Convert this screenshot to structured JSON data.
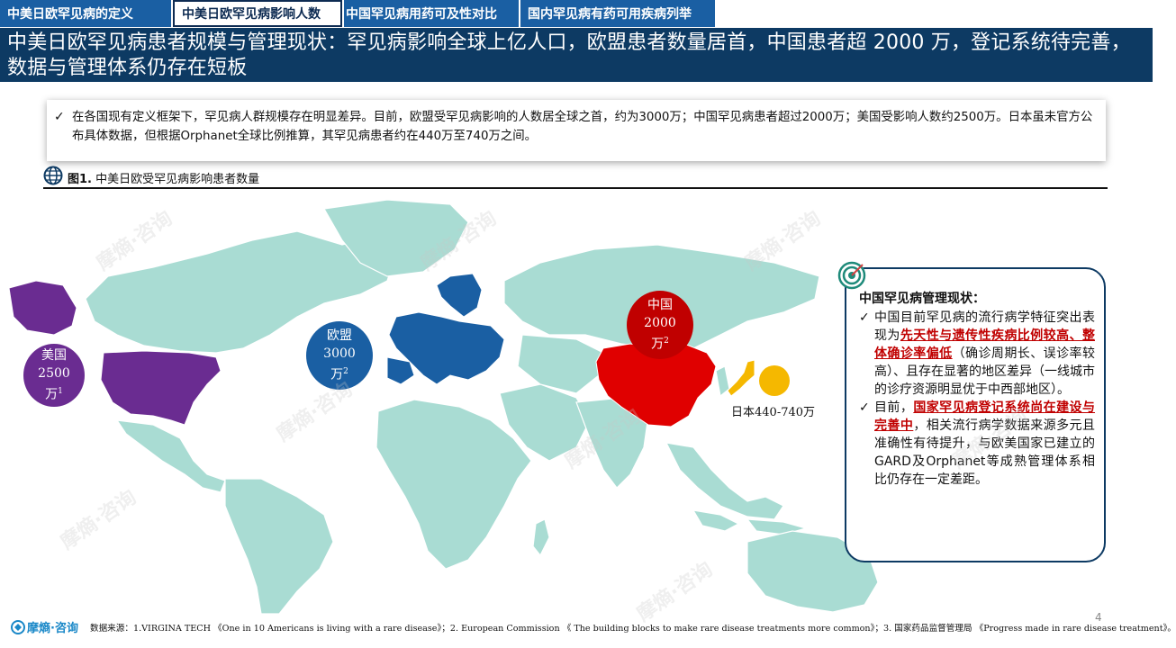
{
  "tabs": [
    {
      "label": "中美日欧罕见病的定义"
    },
    {
      "label": "中美日欧罕见病影响人数"
    },
    {
      "label": "中国罕见病用药可及性对比"
    },
    {
      "label": "国内罕见病有药可用疾病列举"
    }
  ],
  "header": {
    "title": "中美日欧罕见病患者规模与管理现状：罕见病影响全球上亿人口，欧盟患者数量居首，中国患者超 2000 万，登记系统待完善，数据与管理体系仍存在短板"
  },
  "summary": {
    "check": "✓",
    "text": "在各国现有定义框架下，罕见病人群规模存在明显差异。目前，欧盟受罕见病影响的人数居全球之首，约为3000万；中国罕见病患者超过2000万；美国受影响人数约2500万。日本虽未官方公布具体数据，但根据Orphanet全球比例推算，其罕见病患者约在440万至740万之间。"
  },
  "figure": {
    "prefix": "图1.",
    "caption": "中美日欧受罕见病影响患者数量"
  },
  "bubbles": {
    "us": {
      "name": "美国",
      "value": "2500",
      "unit": "万",
      "ref": "1"
    },
    "eu": {
      "name": "欧盟",
      "value": "3000",
      "unit": "万",
      "ref": "2"
    },
    "cn": {
      "name": "中国",
      "value": "2000",
      "unit": "万",
      "ref": "2"
    },
    "jp": {
      "label": "日本440-740万"
    }
  },
  "colors": {
    "us": "#6a2c91",
    "eu": "#1a5fa3",
    "cn": "#c00000",
    "jp": "#f5b800",
    "land": "#a9dcd3",
    "header": "#0d3a63"
  },
  "panel": {
    "title": "中国罕见病管理现状：",
    "item1": {
      "pre": "中国目前罕见病的流行病学特征突出表现为",
      "highlight": "先天性与遗传性疾病比例较高、整体确诊率偏低",
      "post": "（确诊周期长、误诊率较高）、且存在显著的地区差异（一线城市的诊疗资源明显优于中西部地区）。"
    },
    "item2": {
      "pre": "目前，",
      "highlight": "国家罕见病登记系统尚在建设与完善中",
      "post": "，相关流行病学数据来源多元且准确性有待提升，与欧美国家已建立的GARD及Orphanet等成熟管理体系相比仍存在一定差距。"
    }
  },
  "footer": {
    "logo": "摩熵·咨询",
    "source": "数据来源：1.VIRGINA TECH 《One in 10 Americans is living with a rare disease》；2. European Commission 《 The building blocks to make rare disease treatments more common》；3. 国家药品监督管理局 《Progress made in rare disease treatment》。",
    "page": "4"
  },
  "watermark": "摩熵·咨询"
}
